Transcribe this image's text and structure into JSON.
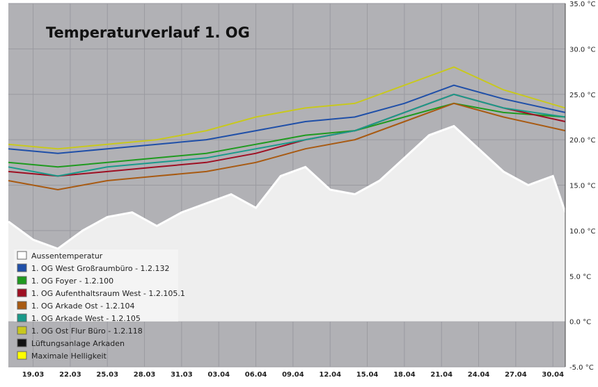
{
  "chart_data": {
    "type": "line",
    "title": "Temperaturverlauf 1. OG",
    "xlabel": "",
    "ylabel": "",
    "x_range": [
      "2024-03-17",
      "2024-05-01"
    ],
    "ylim": [
      -5.0,
      35.0
    ],
    "y_ticks": [
      "35.0 °C",
      "30.0 °C",
      "25.0 °C",
      "20.0 °C",
      "15.0 °C",
      "10.0 °C",
      "5.0 °C",
      "0.0 °C",
      "-5.0 °C"
    ],
    "y_tick_values": [
      35,
      30,
      25,
      20,
      15,
      10,
      5,
      0,
      -5
    ],
    "x_ticks": [
      "19.03",
      "22.03",
      "25.03",
      "28.03",
      "31.03",
      "03.04",
      "06.04",
      "09.04",
      "12.04",
      "15.04",
      "18.04",
      "21.04",
      "24.04",
      "27.04",
      "30.04"
    ],
    "grid": true,
    "legend_position": "bottom-left",
    "background_color": "#b1b1b5",
    "series": [
      {
        "name": "Aussentemperatur",
        "color": "#ffffff",
        "style": "area",
        "x": [
          "2024-03-17",
          "2024-03-19",
          "2024-03-21",
          "2024-03-23",
          "2024-03-25",
          "2024-03-27",
          "2024-03-29",
          "2024-03-31",
          "2024-04-02",
          "2024-04-04",
          "2024-04-06",
          "2024-04-08",
          "2024-04-10",
          "2024-04-12",
          "2024-04-14",
          "2024-04-16",
          "2024-04-18",
          "2024-04-20",
          "2024-04-22",
          "2024-04-24",
          "2024-04-26",
          "2024-04-28",
          "2024-04-30",
          "2024-05-01"
        ],
        "values": [
          11.0,
          9.0,
          8.0,
          10.0,
          11.5,
          12.0,
          10.5,
          12.0,
          13.0,
          14.0,
          12.5,
          16.0,
          17.0,
          14.5,
          14.0,
          15.5,
          18.0,
          20.5,
          21.5,
          19.0,
          16.5,
          15.0,
          16.0,
          12.0
        ]
      },
      {
        "name": "1. OG West Großraumbüro - 1.2.132",
        "color": "#1f4fa8",
        "x": [
          "2024-03-17",
          "2024-03-21",
          "2024-03-25",
          "2024-03-29",
          "2024-04-02",
          "2024-04-06",
          "2024-04-10",
          "2024-04-14",
          "2024-04-18",
          "2024-04-22",
          "2024-04-26",
          "2024-05-01"
        ],
        "values": [
          19.0,
          18.5,
          19.0,
          19.5,
          20.0,
          21.0,
          22.0,
          22.5,
          24.0,
          26.0,
          24.5,
          23.0
        ]
      },
      {
        "name": "1. OG Foyer - 1.2.100",
        "color": "#1f9a1f",
        "x": [
          "2024-03-17",
          "2024-03-21",
          "2024-03-25",
          "2024-03-29",
          "2024-04-02",
          "2024-04-06",
          "2024-04-10",
          "2024-04-14",
          "2024-04-18",
          "2024-04-22",
          "2024-04-26",
          "2024-05-01"
        ],
        "values": [
          17.5,
          17.0,
          17.5,
          18.0,
          18.5,
          19.5,
          20.5,
          21.0,
          22.5,
          24.0,
          23.0,
          22.5
        ]
      },
      {
        "name": "1. OG Aufenthaltsraum West - 1.2.105.1",
        "color": "#9e0f22",
        "x": [
          "2024-03-17",
          "2024-03-21",
          "2024-03-25",
          "2024-03-29",
          "2024-04-02",
          "2024-04-06",
          "2024-04-10",
          "2024-04-14",
          "2024-04-18",
          "2024-04-22",
          "2024-04-26",
          "2024-05-01"
        ],
        "values": [
          16.5,
          16.0,
          16.5,
          17.0,
          17.5,
          18.5,
          20.0,
          21.0,
          23.0,
          25.0,
          23.5,
          22.0
        ]
      },
      {
        "name": "1. OG Arkade Ost - 1.2.104",
        "color": "#a85a12",
        "x": [
          "2024-03-17",
          "2024-03-21",
          "2024-03-25",
          "2024-03-29",
          "2024-04-02",
          "2024-04-06",
          "2024-04-10",
          "2024-04-14",
          "2024-04-18",
          "2024-04-22",
          "2024-04-26",
          "2024-05-01"
        ],
        "values": [
          15.5,
          14.5,
          15.5,
          16.0,
          16.5,
          17.5,
          19.0,
          20.0,
          22.0,
          24.0,
          22.5,
          21.0
        ]
      },
      {
        "name": "1. OG Arkade West - 1.2.105",
        "color": "#1a9a8a",
        "x": [
          "2024-03-17",
          "2024-03-21",
          "2024-03-25",
          "2024-03-29",
          "2024-04-02",
          "2024-04-06",
          "2024-04-10",
          "2024-04-14",
          "2024-04-18",
          "2024-04-22",
          "2024-04-26",
          "2024-05-01"
        ],
        "values": [
          17.0,
          16.0,
          17.0,
          17.5,
          18.0,
          19.0,
          20.0,
          21.0,
          23.0,
          25.0,
          23.5,
          22.5
        ]
      },
      {
        "name": "1. OG Ost Flur Büro - 1.2.118",
        "color": "#c8c81e",
        "x": [
          "2024-03-17",
          "2024-03-21",
          "2024-03-25",
          "2024-03-29",
          "2024-04-02",
          "2024-04-06",
          "2024-04-10",
          "2024-04-14",
          "2024-04-18",
          "2024-04-22",
          "2024-04-26",
          "2024-05-01"
        ],
        "values": [
          19.5,
          19.0,
          19.5,
          20.0,
          21.0,
          22.5,
          23.5,
          24.0,
          26.0,
          28.0,
          25.5,
          23.5
        ]
      },
      {
        "name": "Lüftungsanlage Arkaden",
        "color": "#111111",
        "x": [],
        "values": []
      },
      {
        "name": "Maximale Helligkeit",
        "color": "#ffff00",
        "x": [],
        "values": []
      }
    ]
  }
}
